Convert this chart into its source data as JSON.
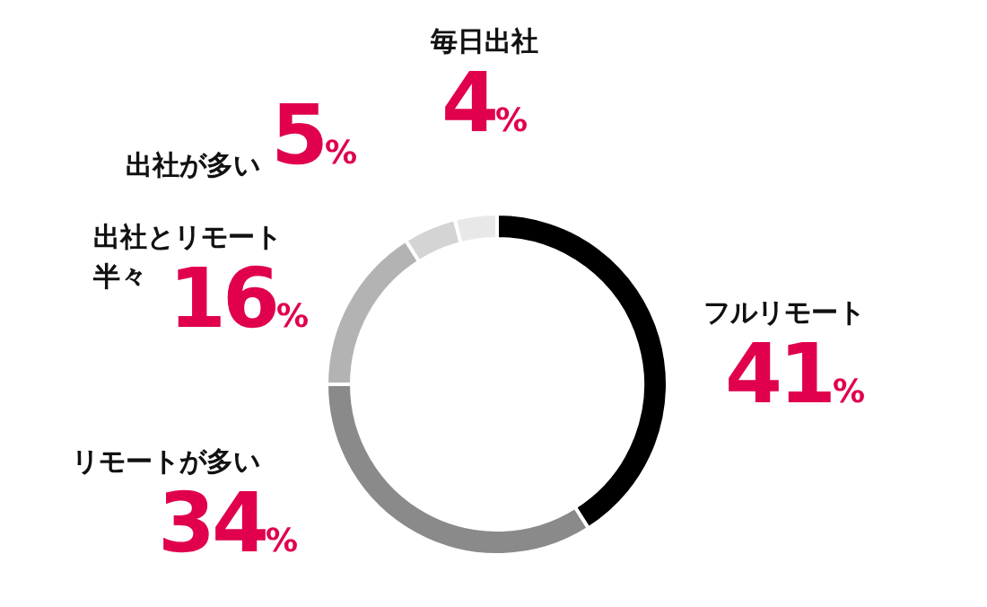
{
  "chart_data": {
    "type": "donut",
    "categories": [
      "フルリモート",
      "リモートが多い",
      "出社とリモート半々",
      "出社が多い",
      "毎日出社"
    ],
    "values": [
      41,
      34,
      16,
      5,
      4
    ],
    "value_labels": [
      "41%",
      "34%",
      "16%",
      "5%",
      "4%"
    ],
    "colors": [
      "#000000",
      "#8a8a8a",
      "#b3b3b3",
      "#d4d4d4",
      "#e8e8e8"
    ]
  }
}
